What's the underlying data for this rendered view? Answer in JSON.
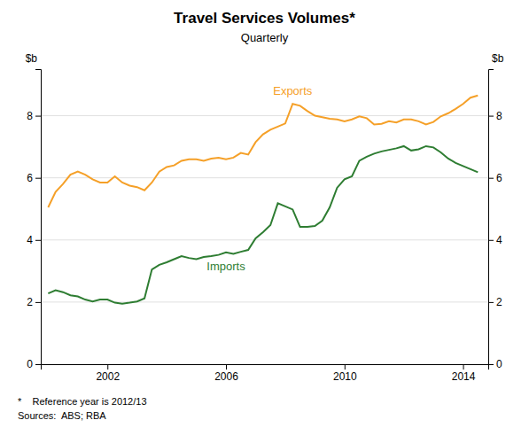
{
  "chart_data": {
    "type": "line",
    "title": "Travel Services Volumes*",
    "subtitle": "Quarterly",
    "ylabel": "$b",
    "y2label": "$b",
    "footnote": "*    Reference year is 2012/13",
    "source": "Sources:  ABS; RBA",
    "xlim": [
      1999.75,
      2014.85
    ],
    "xticks": [
      2002,
      2006,
      2010,
      2014
    ],
    "ylim": [
      0,
      9.5
    ],
    "yticks": [
      0,
      2,
      4,
      6,
      8
    ],
    "y2lim": [
      0,
      9.5
    ],
    "y2ticks": [
      0,
      2,
      4,
      6,
      8
    ],
    "grid": true,
    "x": [
      2000,
      2000.25,
      2000.5,
      2000.75,
      2001,
      2001.25,
      2001.5,
      2001.75,
      2002,
      2002.25,
      2002.5,
      2002.75,
      2003,
      2003.25,
      2003.5,
      2003.75,
      2004,
      2004.25,
      2004.5,
      2004.75,
      2005,
      2005.25,
      2005.5,
      2005.75,
      2006,
      2006.25,
      2006.5,
      2006.75,
      2007,
      2007.25,
      2007.5,
      2007.75,
      2008,
      2008.25,
      2008.5,
      2008.75,
      2009,
      2009.25,
      2009.5,
      2009.75,
      2010,
      2010.25,
      2010.5,
      2010.75,
      2011,
      2011.25,
      2011.5,
      2011.75,
      2012,
      2012.25,
      2012.5,
      2012.75,
      2013,
      2013.25,
      2013.5,
      2013.75,
      2014,
      2014.25,
      2014.5
    ],
    "series": [
      {
        "name": "Exports",
        "color": "#F5A028",
        "values": [
          5.05,
          5.55,
          5.8,
          6.1,
          6.2,
          6.1,
          5.95,
          5.85,
          5.85,
          6.05,
          5.85,
          5.75,
          5.7,
          5.6,
          5.85,
          6.2,
          6.35,
          6.4,
          6.55,
          6.6,
          6.6,
          6.55,
          6.62,
          6.65,
          6.6,
          6.65,
          6.8,
          6.75,
          7.15,
          7.4,
          7.55,
          7.65,
          7.75,
          8.38,
          8.32,
          8.15,
          8.0,
          7.95,
          7.9,
          7.88,
          7.82,
          7.88,
          7.98,
          7.92,
          7.72,
          7.74,
          7.82,
          7.78,
          7.88,
          7.88,
          7.82,
          7.72,
          7.8,
          7.98,
          8.08,
          8.22,
          8.38,
          8.58,
          8.65
        ]
      },
      {
        "name": "Imports",
        "color": "#2E7D32",
        "values": [
          2.28,
          2.38,
          2.32,
          2.22,
          2.18,
          2.08,
          2.02,
          2.08,
          2.08,
          1.98,
          1.95,
          1.98,
          2.02,
          2.12,
          3.05,
          3.2,
          3.28,
          3.38,
          3.48,
          3.42,
          3.38,
          3.45,
          3.48,
          3.52,
          3.6,
          3.55,
          3.62,
          3.68,
          4.05,
          4.25,
          4.48,
          5.18,
          5.08,
          4.98,
          4.42,
          4.42,
          4.45,
          4.62,
          5.05,
          5.68,
          5.95,
          6.05,
          6.55,
          6.68,
          6.78,
          6.85,
          6.9,
          6.95,
          7.02,
          6.88,
          6.92,
          7.02,
          6.98,
          6.82,
          6.62,
          6.48,
          6.38,
          6.28,
          6.18
        ]
      }
    ]
  }
}
